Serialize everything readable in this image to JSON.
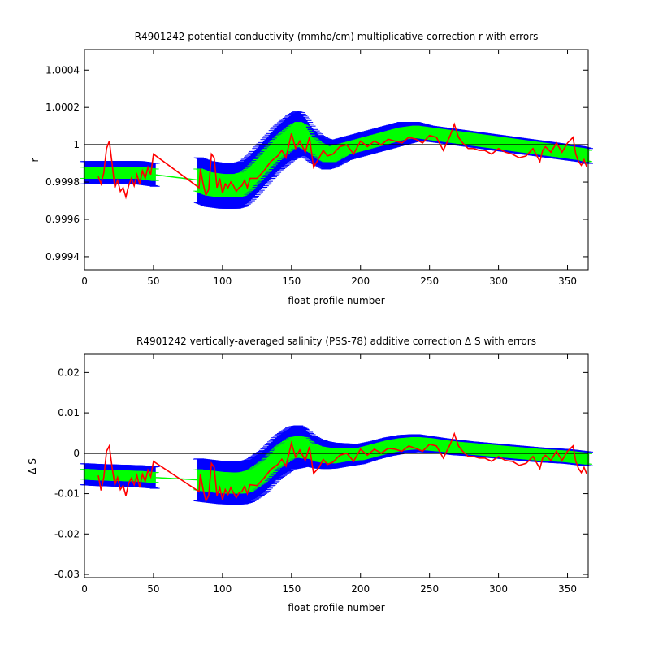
{
  "chart_data": [
    {
      "type": "line",
      "title": "R4901242 potential conductivity (mmho/cm) multiplicative correction r with errors",
      "xlabel": "float profile number",
      "ylabel": "r",
      "xlim": [
        0,
        365
      ],
      "ylim": [
        0.99933,
        1.00051
      ],
      "xticks": [
        0,
        50,
        100,
        150,
        200,
        250,
        300,
        350
      ],
      "yticks": [
        0.9994,
        0.9996,
        0.9998,
        1,
        1.0002,
        1.0004
      ],
      "ytick_labels": [
        "0.9994",
        "0.9996",
        "0.9998",
        "1",
        "1.0002",
        "1.0004"
      ],
      "reference_line": 1,
      "grid": false,
      "colors": {
        "outer_error": "#0000ff",
        "inner_error": "#00ff00",
        "fit": "#00ff00",
        "data": "#ff0000",
        "reference": "#000000"
      },
      "band": {
        "x": [
          0,
          10,
          20,
          30,
          40,
          50,
          83,
          90,
          100,
          110,
          115,
          120,
          130,
          140,
          150,
          155,
          160,
          165,
          170,
          175,
          180,
          190,
          200,
          210,
          220,
          230,
          240,
          250,
          260,
          270,
          280,
          290,
          300,
          310,
          320,
          330,
          340,
          350,
          360,
          365
        ],
        "fit": [
          0.99985,
          0.99985,
          0.99985,
          0.99985,
          0.99985,
          0.99984,
          0.99981,
          0.99979,
          0.99978,
          0.99978,
          0.99979,
          0.99982,
          0.9999,
          0.99998,
          1.00004,
          1.00006,
          1.00004,
          1.0,
          0.99997,
          0.99995,
          0.99995,
          0.99998,
          1.0,
          1.00002,
          1.00004,
          1.00006,
          1.00007,
          1.00006,
          1.00005,
          1.00004,
          1.00003,
          1.00002,
          1.00001,
          1.0,
          0.99999,
          0.99998,
          0.99997,
          0.99996,
          0.99995,
          0.99994
        ],
        "inner": [
          3e-05,
          3e-05,
          3e-05,
          3e-05,
          3e-05,
          3e-05,
          6e-05,
          6e-05,
          6e-05,
          6e-05,
          6e-05,
          6e-05,
          6e-05,
          6e-05,
          6e-05,
          6e-05,
          6e-05,
          4e-05,
          4e-05,
          4e-05,
          4e-05,
          3e-05,
          3e-05,
          3e-05,
          3e-05,
          3e-05,
          3e-05,
          3e-05,
          3e-05,
          3e-05,
          3e-05,
          3e-05,
          3e-05,
          3e-05,
          3e-05,
          3e-05,
          3e-05,
          3e-05,
          3e-05,
          3e-05
        ],
        "outer": [
          6e-05,
          6e-05,
          6e-05,
          6e-05,
          6e-05,
          6e-05,
          0.00012,
          0.00012,
          0.00012,
          0.00012,
          0.00012,
          0.00012,
          0.00012,
          0.00012,
          0.00012,
          0.00012,
          0.0001,
          9e-05,
          8e-05,
          8e-05,
          7e-05,
          6e-05,
          6e-05,
          6e-05,
          6e-05,
          6e-05,
          5e-05,
          4e-05,
          4e-05,
          4e-05,
          4e-05,
          4e-05,
          4e-05,
          4e-05,
          4e-05,
          4e-05,
          4e-05,
          4e-05,
          4e-05,
          4e-05
        ]
      },
      "data_line": {
        "x": [
          10,
          12,
          14,
          16,
          18,
          20,
          22,
          24,
          26,
          28,
          30,
          32,
          34,
          36,
          38,
          40,
          42,
          44,
          46,
          48,
          50,
          83,
          84,
          86,
          88,
          90,
          92,
          94,
          96,
          98,
          100,
          102,
          104,
          106,
          108,
          110,
          112,
          114,
          116,
          118,
          120,
          125,
          130,
          135,
          140,
          143,
          146,
          150,
          153,
          156,
          160,
          163,
          166,
          170,
          173,
          176,
          180,
          185,
          190,
          195,
          200,
          205,
          210,
          215,
          220,
          225,
          230,
          235,
          240,
          245,
          250,
          255,
          260,
          265,
          268,
          271,
          274,
          278,
          282,
          286,
          290,
          295,
          300,
          305,
          310,
          315,
          320,
          325,
          330,
          332,
          334,
          338,
          342,
          346,
          350,
          354,
          356,
          358,
          360,
          362,
          364
        ],
        "y": [
          0.99983,
          0.99979,
          0.99985,
          0.99998,
          1.00002,
          0.9999,
          0.99977,
          0.99981,
          0.99975,
          0.99977,
          0.99972,
          0.99978,
          0.99982,
          0.99978,
          0.99984,
          0.99979,
          0.99986,
          0.99982,
          0.99988,
          0.99984,
          0.99995,
          0.99977,
          0.99987,
          0.99979,
          0.99973,
          0.99976,
          0.99995,
          0.99993,
          0.99977,
          0.99982,
          0.99974,
          0.99979,
          0.99977,
          0.9998,
          0.99978,
          0.99975,
          0.99977,
          0.99978,
          0.99981,
          0.99977,
          0.99982,
          0.99982,
          0.99986,
          0.99991,
          0.99994,
          0.99997,
          0.99993,
          1.00006,
          0.99998,
          1.00002,
          0.99996,
          1.00004,
          0.99988,
          0.99993,
          0.99997,
          0.99994,
          0.99995,
          0.99999,
          1.0,
          0.99995,
          1.00002,
          0.99999,
          1.00002,
          1.0,
          1.00003,
          1.00002,
          1.00001,
          1.00004,
          1.00003,
          1.00001,
          1.00005,
          1.00004,
          0.99997,
          1.00005,
          1.00011,
          1.00004,
          1.00001,
          0.99998,
          0.99998,
          0.99997,
          0.99997,
          0.99995,
          0.99998,
          0.99996,
          0.99995,
          0.99993,
          0.99994,
          0.99998,
          0.99991,
          0.99997,
          0.99999,
          0.99996,
          1.00001,
          0.99996,
          1.00001,
          1.00004,
          0.99995,
          0.99991,
          0.99989,
          0.99992,
          0.99988
        ]
      }
    },
    {
      "type": "line",
      "title": "R4901242 vertically-averaged salinity (PSS-78) additive correction Δ S with errors",
      "xlabel": "float profile number",
      "ylabel": "Δ S",
      "xlim": [
        0,
        365
      ],
      "ylim": [
        -0.0308,
        0.0245
      ],
      "xticks": [
        0,
        50,
        100,
        150,
        200,
        250,
        300,
        350
      ],
      "yticks": [
        -0.03,
        -0.02,
        -0.01,
        0,
        0.01,
        0.02
      ],
      "ytick_labels": [
        "-0.03",
        "-0.02",
        "-0.01",
        "0",
        "0.01",
        "0.02"
      ],
      "reference_line": 0,
      "grid": false,
      "colors": {
        "outer_error": "#0000ff",
        "inner_error": "#00ff00",
        "fit": "#00ff00",
        "data": "#ff0000",
        "reference": "#000000"
      },
      "band": {
        "x": [
          0,
          10,
          20,
          30,
          40,
          50,
          83,
          90,
          100,
          110,
          115,
          120,
          130,
          140,
          150,
          155,
          160,
          165,
          170,
          175,
          180,
          190,
          200,
          210,
          220,
          230,
          240,
          250,
          260,
          270,
          280,
          290,
          300,
          310,
          320,
          330,
          340,
          350,
          360,
          365
        ],
        "fit": [
          -0.0052,
          -0.0054,
          -0.0055,
          -0.0056,
          -0.0057,
          -0.006,
          -0.0066,
          -0.0069,
          -0.0073,
          -0.0074,
          -0.0073,
          -0.0068,
          -0.0045,
          -0.001,
          0.0013,
          0.0016,
          0.0013,
          0.0005,
          -0.0002,
          -0.0005,
          -0.0006,
          -0.0004,
          -0.0002,
          0.0007,
          0.0016,
          0.0022,
          0.0025,
          0.0022,
          0.0018,
          0.0014,
          0.0011,
          0.0008,
          0.0005,
          0.0002,
          -0.0001,
          -0.0004,
          -0.0006,
          -0.0008,
          -0.0012,
          -0.0014
        ],
        "inner": [
          0.0012,
          0.0012,
          0.0012,
          0.0012,
          0.0012,
          0.0012,
          0.0025,
          0.0025,
          0.0025,
          0.0025,
          0.0025,
          0.0025,
          0.0025,
          0.0025,
          0.0025,
          0.0025,
          0.0025,
          0.0018,
          0.0018,
          0.0018,
          0.0018,
          0.0014,
          0.0014,
          0.0014,
          0.0014,
          0.0014,
          0.0014,
          0.0014,
          0.0013,
          0.0013,
          0.0013,
          0.0013,
          0.0013,
          0.0013,
          0.0013,
          0.0013,
          0.0013,
          0.0013,
          0.0013,
          0.0013
        ],
        "outer": [
          0.0026,
          0.0026,
          0.0026,
          0.0026,
          0.0026,
          0.0026,
          0.0052,
          0.0052,
          0.0052,
          0.0052,
          0.0052,
          0.0052,
          0.0052,
          0.0052,
          0.0052,
          0.0052,
          0.0045,
          0.0038,
          0.0035,
          0.0033,
          0.0031,
          0.0027,
          0.0024,
          0.0022,
          0.0022,
          0.0022,
          0.0021,
          0.0019,
          0.0018,
          0.0018,
          0.0017,
          0.0017,
          0.0017,
          0.0017,
          0.0017,
          0.0017,
          0.0017,
          0.0017,
          0.0017,
          0.0017
        ]
      },
      "data_line": {
        "x": [
          10,
          12,
          14,
          16,
          18,
          20,
          22,
          24,
          26,
          28,
          30,
          32,
          34,
          36,
          38,
          40,
          42,
          44,
          46,
          48,
          50,
          83,
          84,
          86,
          88,
          90,
          92,
          94,
          96,
          98,
          100,
          102,
          104,
          106,
          108,
          110,
          112,
          114,
          116,
          118,
          120,
          125,
          130,
          135,
          140,
          143,
          146,
          150,
          153,
          156,
          160,
          163,
          166,
          170,
          173,
          176,
          180,
          185,
          190,
          195,
          200,
          205,
          210,
          215,
          220,
          225,
          230,
          235,
          240,
          245,
          250,
          255,
          260,
          265,
          268,
          271,
          274,
          278,
          282,
          286,
          290,
          295,
          300,
          305,
          310,
          315,
          320,
          325,
          330,
          332,
          334,
          338,
          342,
          346,
          350,
          354,
          356,
          358,
          360,
          362,
          364
        ],
        "y": [
          -0.0055,
          -0.0092,
          -0.006,
          0.0005,
          0.0018,
          -0.0035,
          -0.0078,
          -0.006,
          -0.009,
          -0.008,
          -0.0105,
          -0.0075,
          -0.0062,
          -0.0078,
          -0.0055,
          -0.0085,
          -0.0052,
          -0.007,
          -0.0042,
          -0.0058,
          -0.002,
          -0.0095,
          -0.0052,
          -0.009,
          -0.0118,
          -0.0105,
          -0.0025,
          -0.0035,
          -0.0105,
          -0.0085,
          -0.0115,
          -0.009,
          -0.0102,
          -0.0085,
          -0.0098,
          -0.011,
          -0.0098,
          -0.0095,
          -0.0082,
          -0.01,
          -0.0078,
          -0.008,
          -0.0062,
          -0.004,
          -0.0028,
          -0.0015,
          -0.0032,
          0.0025,
          -0.001,
          0.0008,
          -0.0018,
          0.0016,
          -0.005,
          -0.0035,
          -0.0015,
          -0.0028,
          -0.0022,
          -0.0005,
          0.0,
          -0.002,
          0.001,
          -0.0005,
          0.001,
          0.0,
          0.0012,
          0.001,
          0.0005,
          0.0018,
          0.0012,
          0.0005,
          0.0022,
          0.0018,
          -0.0012,
          0.0022,
          0.0048,
          0.0018,
          0.0005,
          -0.0008,
          -0.0008,
          -0.0012,
          -0.0012,
          -0.002,
          -0.0008,
          -0.0018,
          -0.002,
          -0.003,
          -0.0025,
          -0.0008,
          -0.0038,
          -0.0012,
          -0.0005,
          -0.0018,
          0.0005,
          -0.0018,
          0.0005,
          0.0018,
          -0.002,
          -0.0038,
          -0.0048,
          -0.0035,
          -0.0052
        ]
      }
    }
  ]
}
